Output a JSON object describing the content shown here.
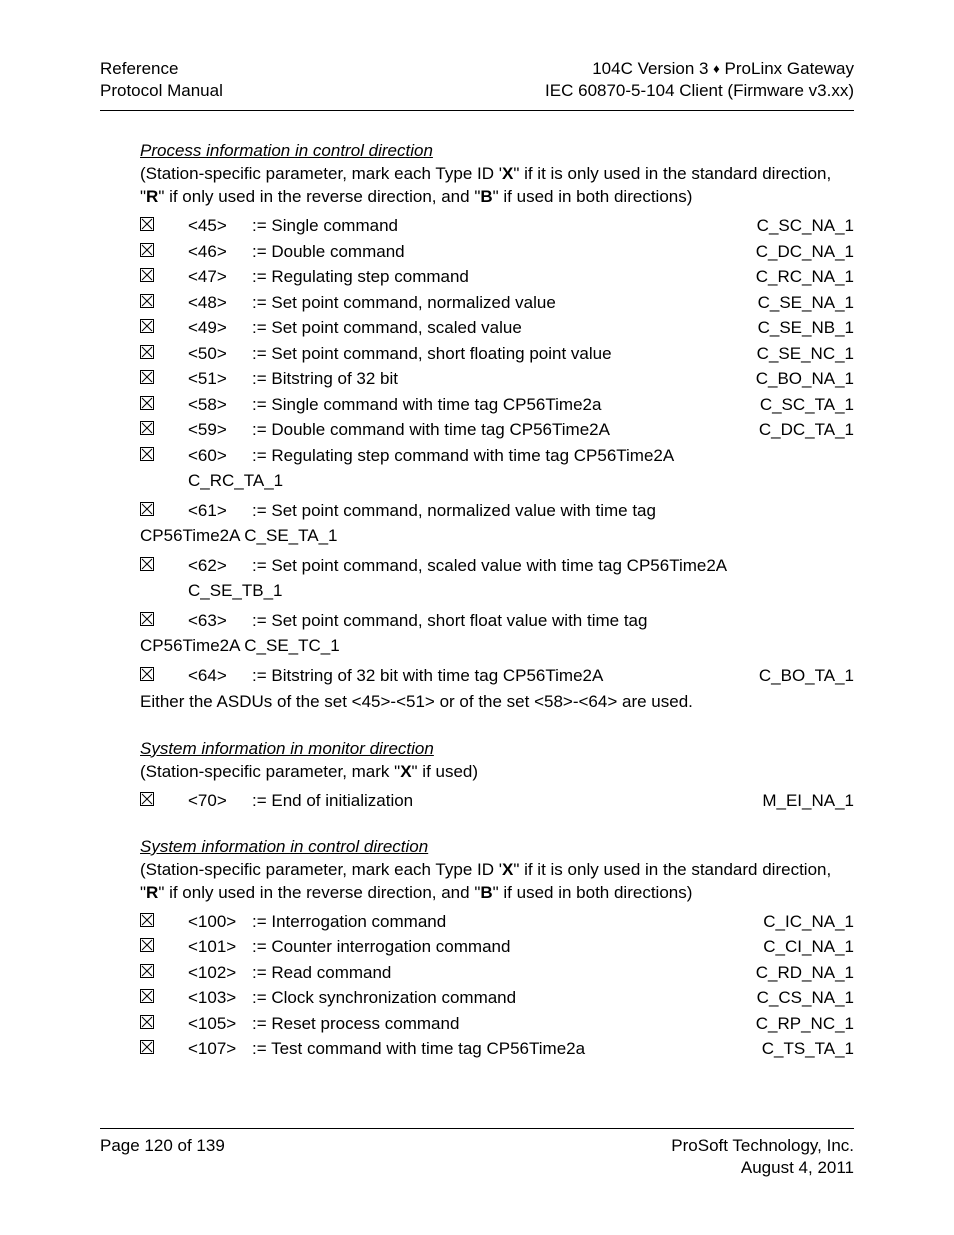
{
  "header": {
    "left_line1": "Reference",
    "left_line2": "Protocol Manual",
    "right_line1_a": "104C Version 3 ",
    "right_line1_b": " ProLinx Gateway",
    "right_line2": "IEC 60870-5-104 Client (Firmware v3.xx)"
  },
  "sec1": {
    "title": "Process information in control direction",
    "sub_pre": "(Station-specific parameter, mark each Type ID '",
    "sub_x": "X",
    "sub_mid1": "\" if it is only used in the standard direction, \"",
    "sub_r": "R",
    "sub_mid2": "\" if only used in the reverse direction, and \"",
    "sub_b": "B",
    "sub_end": "\" if used in both directions)",
    "rows": [
      {
        "id": "<45>",
        "desc": ":= Single command",
        "code": "C_SC_NA_1"
      },
      {
        "id": "<46>",
        "desc": ":= Double command",
        "code": "C_DC_NA_1"
      },
      {
        "id": "<47>",
        "desc": ":= Regulating step command",
        "code": "C_RC_NA_1"
      },
      {
        "id": "<48>",
        "desc": ":= Set point command, normalized value",
        "code": "C_SE_NA_1"
      },
      {
        "id": "<49>",
        "desc": ":= Set point command, scaled value",
        "code": "C_SE_NB_1"
      },
      {
        "id": "<50>",
        "desc": ":= Set point command, short floating point value",
        "code": "C_SE_NC_1"
      },
      {
        "id": "<51>",
        "desc": ":= Bitstring of 32 bit",
        "code": "C_BO_NA_1"
      },
      {
        "id": "<58>",
        "desc": ":= Single command with time tag CP56Time2a",
        "code": "C_SC_TA_1"
      },
      {
        "id": "<59>",
        "desc": ":= Double command with time tag CP56Time2A",
        "code": "C_DC_TA_1"
      }
    ],
    "wrap60_id": "<60>",
    "wrap60_text": ":= Regulating step command with time tag CP56Time2A",
    "wrap60_cont": "C_RC_TA_1",
    "wrap61_id": "<61>",
    "wrap61_text": ":= Set point command, normalized value with time tag",
    "wrap61_cont": "CP56Time2A  C_SE_TA_1",
    "wrap62_id": "<62>",
    "wrap62_text": ":= Set point command, scaled value with time tag CP56Time2A",
    "wrap62_cont": "C_SE_TB_1",
    "wrap63_id": "<63>",
    "wrap63_text": ":= Set point command, short float value with time tag",
    "wrap63_cont": "CP56Time2A  C_SE_TC_1",
    "row64": {
      "id": "<64>",
      "desc": ":= Bitstring of 32 bit with time tag CP56Time2A",
      "code": "C_BO_TA_1"
    },
    "note": "Either the ASDUs of the set <45>-<51> or of the set <58>-<64> are used."
  },
  "sec2": {
    "title": "System information in monitor direction",
    "sub_pre": "(Station-specific parameter, mark \"",
    "sub_x": "X",
    "sub_end": "\" if used)",
    "row": {
      "id": "<70>",
      "desc": ":= End of initialization",
      "code": "M_EI_NA_1"
    }
  },
  "sec3": {
    "title": "System information in control direction",
    "rows": [
      {
        "id": "<100>",
        "desc": ":= Interrogation command",
        "code": "C_IC_NA_1"
      },
      {
        "id": "<101>",
        "desc": ":= Counter interrogation command",
        "code": "C_CI_NA_1"
      },
      {
        "id": "<102>",
        "desc": ":= Read command",
        "code": "C_RD_NA_1"
      },
      {
        "id": "<103>",
        "desc": ":= Clock synchronization command",
        "code": "C_CS_NA_1"
      },
      {
        "id": "<105>",
        "desc": ":= Reset process command",
        "code": "C_RP_NC_1"
      },
      {
        "id": "<107>",
        "desc": ":= Test command with time tag CP56Time2a",
        "code": "C_TS_TA_1"
      }
    ]
  },
  "footer": {
    "left": "Page 120 of 139",
    "right1": "ProSoft Technology, Inc.",
    "right2": "August 4, 2011"
  }
}
